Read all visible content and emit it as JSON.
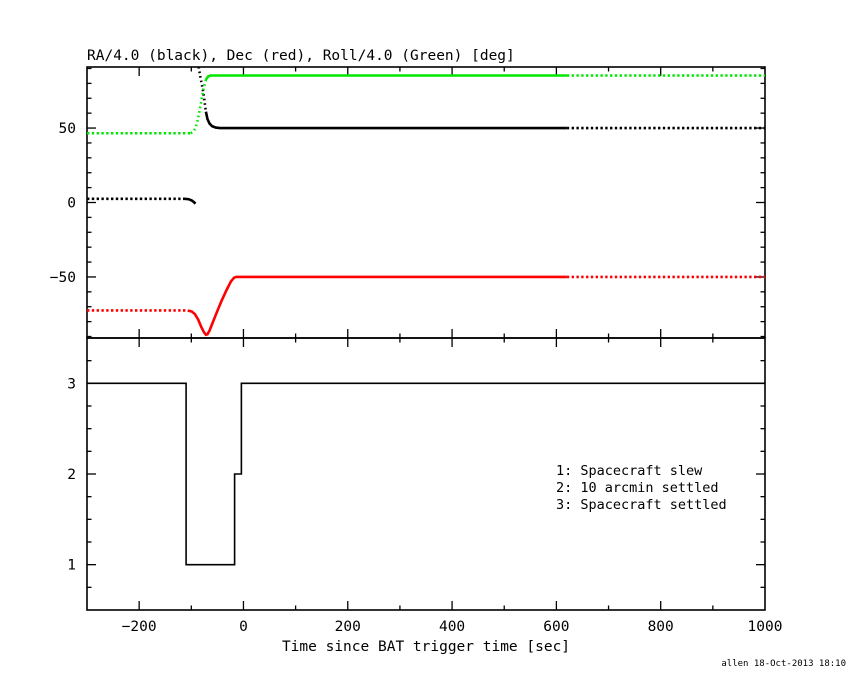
{
  "title": "RA/4.0 (black), Dec (red), Roll/4.0 (Green) [deg]",
  "xlabel": "Time since BAT trigger time [sec]",
  "credit": "allen 18-Oct-2013 18:10",
  "colors": {
    "black": "#000000",
    "red": "#fe0000",
    "green": "#00e800",
    "frame": "#000000",
    "background": "#ffffff",
    "text": "#000000"
  },
  "chart_data": [
    {
      "type": "line",
      "panel": "attitude",
      "title": "RA/4.0 (black), Dec (red), Roll/4.0 (Green) [deg]",
      "xlim": [
        -300,
        1000
      ],
      "ylim": [
        -91,
        91
      ],
      "xticks_labeled": [
        -200,
        0,
        200,
        400,
        600,
        800,
        1000
      ],
      "xtick_minor_step": 100,
      "yticks_labeled": [
        -50,
        0,
        50
      ],
      "ytick_minor_step": 10,
      "show_x_tick_labels": false,
      "grid": false,
      "series": [
        {
          "name": "RA/4.0 (black)",
          "color": "black",
          "segments": [
            {
              "style": "dashed",
              "points": [
                [
                  -300,
                  2.5
                ],
                [
                  -112,
                  2.5
                ]
              ]
            },
            {
              "style": "solid",
              "points": [
                [
                  -112,
                  2.5
                ],
                [
                  -105,
                  2.2
                ],
                [
                  -99,
                  1.3
                ],
                [
                  -95,
                  0.3
                ],
                [
                  -92,
                  -0.8
                ]
              ]
            },
            {
              "style": "dotted",
              "points": [
                [
                  -86,
                  91
                ],
                [
                  -82,
                  83
                ],
                [
                  -78,
                  76
                ],
                [
                  -75,
                  69
                ],
                [
                  -72,
                  61
                ]
              ]
            },
            {
              "style": "solid",
              "points": [
                [
                  -72,
                  61
                ],
                [
                  -69,
                  56
                ],
                [
                  -65,
                  53
                ],
                [
                  -60,
                  51.2
                ],
                [
                  -53,
                  50.3
                ],
                [
                  -45,
                  50
                ],
                [
                  620,
                  50
                ]
              ]
            },
            {
              "style": "dashed",
              "points": [
                [
                  620,
                  50
                ],
                [
                  1000,
                  50
                ]
              ]
            }
          ]
        },
        {
          "name": "Dec (red)",
          "color": "red",
          "segments": [
            {
              "style": "dashed",
              "points": [
                [
                  -300,
                  -72.5
                ],
                [
                  -107,
                  -72.5
                ]
              ]
            },
            {
              "style": "solid",
              "points": [
                [
                  -107,
                  -72.5
                ],
                [
                  -99,
                  -73.2
                ],
                [
                  -93,
                  -75
                ],
                [
                  -87,
                  -78.5
                ],
                [
                  -81,
                  -83.5
                ],
                [
                  -76,
                  -87
                ],
                [
                  -72,
                  -88.8
                ],
                [
                  -69,
                  -88.5
                ],
                [
                  -65,
                  -86
                ],
                [
                  -60,
                  -81.5
                ],
                [
                  -52,
                  -74.5
                ],
                [
                  -42,
                  -66
                ],
                [
                  -32,
                  -58.5
                ],
                [
                  -24,
                  -53
                ],
                [
                  -18,
                  -50.5
                ],
                [
                  -14,
                  -50
                ],
                [
                  620,
                  -50
                ]
              ]
            },
            {
              "style": "dashed",
              "points": [
                [
                  620,
                  -50
                ],
                [
                  1000,
                  -50
                ]
              ]
            }
          ]
        },
        {
          "name": "Roll/4.0 (Green)",
          "color": "green",
          "segments": [
            {
              "style": "dashed",
              "points": [
                [
                  -300,
                  46.5
                ],
                [
                  -101,
                  46.5
                ]
              ]
            },
            {
              "style": "dotted",
              "points": [
                [
                  -101,
                  46.5
                ],
                [
                  -96,
                  47.6
                ],
                [
                  -92,
                  50
                ],
                [
                  -88,
                  55
                ],
                [
                  -84,
                  62
                ],
                [
                  -80,
                  70
                ],
                [
                  -76,
                  77.5
                ],
                [
                  -72,
                  82.5
                ]
              ]
            },
            {
              "style": "solid",
              "points": [
                [
                  -72,
                  82.5
                ],
                [
                  -68,
                  84.6
                ],
                [
                  -63,
                  85.3
                ],
                [
                  620,
                  85.3
                ]
              ]
            },
            {
              "style": "dashed",
              "points": [
                [
                  620,
                  85.3
                ],
                [
                  1000,
                  85.3
                ]
              ]
            }
          ]
        }
      ]
    },
    {
      "type": "line",
      "panel": "settling-status",
      "xlim": [
        -300,
        1000
      ],
      "ylim": [
        0.5,
        3.5
      ],
      "xticks_labeled": [
        -200,
        0,
        200,
        400,
        600,
        800,
        1000
      ],
      "xtick_minor_step": 100,
      "yticks_labeled": [
        1,
        2,
        3
      ],
      "ytick_minor_step": 0.25,
      "show_x_tick_labels": true,
      "grid": false,
      "legend": [
        "1: Spacecraft slew",
        "2: 10 arcmin settled",
        "3: Spacecraft settled"
      ],
      "series": [
        {
          "name": "settling status",
          "color": "black",
          "segments": [
            {
              "style": "solid",
              "points": [
                [
                  -300,
                  3
                ],
                [
                  -110,
                  3
                ],
                [
                  -110,
                  1
                ],
                [
                  -17,
                  1
                ],
                [
                  -17,
                  2
                ],
                [
                  -4,
                  2
                ],
                [
                  -4,
                  3
                ],
                [
                  1000,
                  3
                ]
              ]
            }
          ]
        }
      ]
    }
  ]
}
